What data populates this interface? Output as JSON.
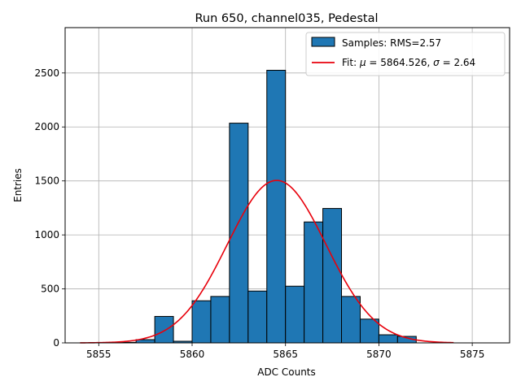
{
  "chart_data": {
    "type": "bar",
    "title": "Run 650, channel035, Pedestal",
    "xlabel": "ADC Counts",
    "ylabel": "Entries",
    "xlim": [
      5853.2,
      5877.0
    ],
    "ylim": [
      0,
      2920
    ],
    "xticks": [
      5855,
      5860,
      5865,
      5870,
      5875
    ],
    "yticks": [
      0,
      500,
      1000,
      1500,
      2000,
      2500
    ],
    "grid": true,
    "legend_position": "top-right",
    "bin_width": 1,
    "histogram": {
      "name": "Samples: RMS=2.57",
      "color": "#1f77b4",
      "bins": [
        {
          "x0": 5856,
          "value": 5
        },
        {
          "x0": 5857,
          "value": 30
        },
        {
          "x0": 5858,
          "value": 245
        },
        {
          "x0": 5859,
          "value": 15
        },
        {
          "x0": 5860,
          "value": 390
        },
        {
          "x0": 5861,
          "value": 430
        },
        {
          "x0": 5862,
          "value": 2035
        },
        {
          "x0": 5863,
          "value": 480
        },
        {
          "x0": 5864,
          "value": 2525
        },
        {
          "x0": 5865,
          "value": 525
        },
        {
          "x0": 5866,
          "value": 1120
        },
        {
          "x0": 5867,
          "value": 1245
        },
        {
          "x0": 5868,
          "value": 430
        },
        {
          "x0": 5869,
          "value": 220
        },
        {
          "x0": 5870,
          "value": 75
        },
        {
          "x0": 5871,
          "value": 60
        }
      ]
    },
    "fit": {
      "name_prefix": "Fit: ",
      "mu_symbol": "μ",
      "mu_text": " = 5864.526, ",
      "sigma_symbol": "σ",
      "sigma_text": " = 2.64",
      "mu": 5864.526,
      "sigma": 2.64,
      "amplitude": 1505,
      "x_range": [
        5854,
        5874
      ],
      "color": "#e8000b"
    }
  }
}
